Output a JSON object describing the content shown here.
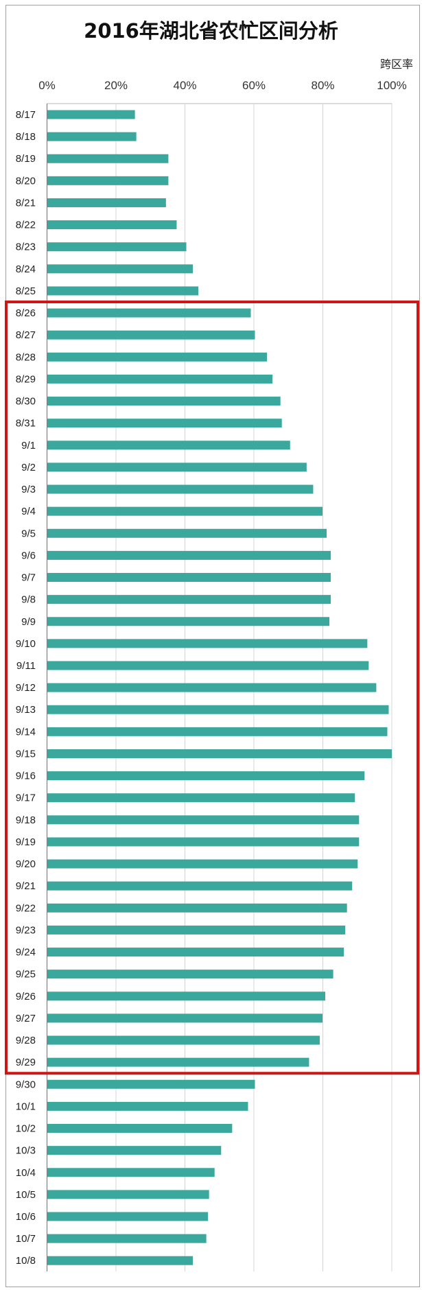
{
  "chart_data": {
    "type": "bar",
    "orientation": "horizontal",
    "title": "2016年湖北省农忙区间分析",
    "xlabel": "跨区率",
    "ylabel": "",
    "xlim": [
      0,
      100
    ],
    "x_ticks": [
      "0%",
      "20%",
      "40%",
      "60%",
      "80%",
      "100%"
    ],
    "grid": true,
    "bar_color": "#3aa89c",
    "highlight": {
      "from": "8/26",
      "to": "9/29",
      "color": "#d01515"
    },
    "categories": [
      "8/17",
      "8/18",
      "8/19",
      "8/20",
      "8/21",
      "8/22",
      "8/23",
      "8/24",
      "8/25",
      "8/26",
      "8/27",
      "8/28",
      "8/29",
      "8/30",
      "8/31",
      "9/1",
      "9/2",
      "9/3",
      "9/4",
      "9/5",
      "9/6",
      "9/7",
      "9/8",
      "9/9",
      "9/10",
      "9/11",
      "9/12",
      "9/13",
      "9/14",
      "9/15",
      "9/16",
      "9/17",
      "9/18",
      "9/19",
      "9/20",
      "9/21",
      "9/22",
      "9/23",
      "9/24",
      "9/25",
      "9/26",
      "9/27",
      "9/28",
      "9/29",
      "9/30",
      "10/1",
      "10/2",
      "10/3",
      "10/4",
      "10/5",
      "10/6",
      "10/7",
      "10/8"
    ],
    "values": [
      25.5,
      25.9,
      35.2,
      35.2,
      34.5,
      37.6,
      40.4,
      42.3,
      43.9,
      59.1,
      60.3,
      63.8,
      65.4,
      67.7,
      68.1,
      70.5,
      75.3,
      77.2,
      79.9,
      81.1,
      82.3,
      82.3,
      82.3,
      81.9,
      92.9,
      93.3,
      95.5,
      99.1,
      98.7,
      100,
      92.1,
      89.3,
      90.5,
      90.5,
      90.1,
      88.5,
      87.0,
      86.5,
      86.1,
      83.0,
      80.7,
      79.9,
      79.1,
      76.0,
      60.3,
      58.3,
      53.7,
      50.5,
      48.6,
      47.0,
      46.7,
      46.2,
      42.3
    ]
  }
}
